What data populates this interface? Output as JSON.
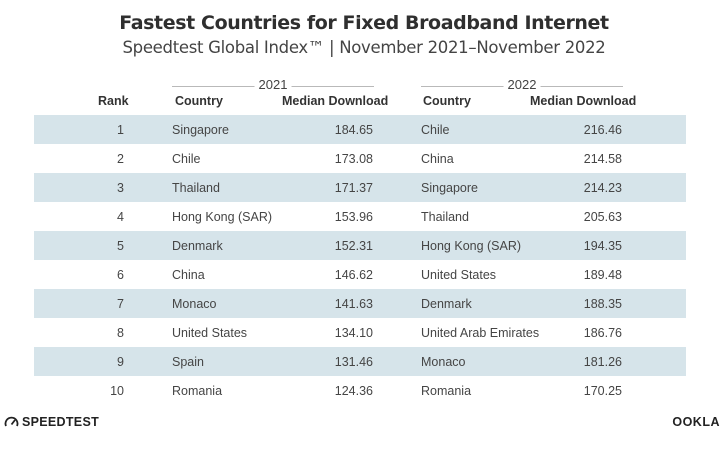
{
  "title": "Fastest Countries for Fixed Broadband Internet",
  "subtitle": "Speedtest Global Index™ | November 2021–November 2022",
  "year_left": "2021",
  "year_right": "2022",
  "headers": {
    "rank": "Rank",
    "country_2021": "Country",
    "download_2021": "Median Download",
    "country_2022": "Country",
    "download_2022": "Median Download"
  },
  "rows": [
    {
      "rank": "1",
      "c2021": "Singapore",
      "v2021": "184.65",
      "c2022": "Chile",
      "v2022": "216.46"
    },
    {
      "rank": "2",
      "c2021": "Chile",
      "v2021": "173.08",
      "c2022": "China",
      "v2022": "214.58"
    },
    {
      "rank": "3",
      "c2021": "Thailand",
      "v2021": "171.37",
      "c2022": "Singapore",
      "v2022": "214.23"
    },
    {
      "rank": "4",
      "c2021": "Hong Kong (SAR)",
      "v2021": "153.96",
      "c2022": "Thailand",
      "v2022": "205.63"
    },
    {
      "rank": "5",
      "c2021": "Denmark",
      "v2021": "152.31",
      "c2022": "Hong Kong (SAR)",
      "v2022": "194.35"
    },
    {
      "rank": "6",
      "c2021": "China",
      "v2021": "146.62",
      "c2022": "United States",
      "v2022": "189.48"
    },
    {
      "rank": "7",
      "c2021": "Monaco",
      "v2021": "141.63",
      "c2022": "Denmark",
      "v2022": "188.35"
    },
    {
      "rank": "8",
      "c2021": "United States",
      "v2021": "134.10",
      "c2022": "United Arab Emirates",
      "v2022": "186.76"
    },
    {
      "rank": "9",
      "c2021": "Spain",
      "v2021": "131.46",
      "c2022": "Monaco",
      "v2022": "181.26"
    },
    {
      "rank": "10",
      "c2021": "Romania",
      "v2021": "124.36",
      "c2022": "Romania",
      "v2022": "170.25"
    }
  ],
  "brand_left": "SPEEDTEST",
  "brand_right": "OOKLA",
  "colors": {
    "row_shade": "#d6e4ea",
    "text": "#454545"
  }
}
